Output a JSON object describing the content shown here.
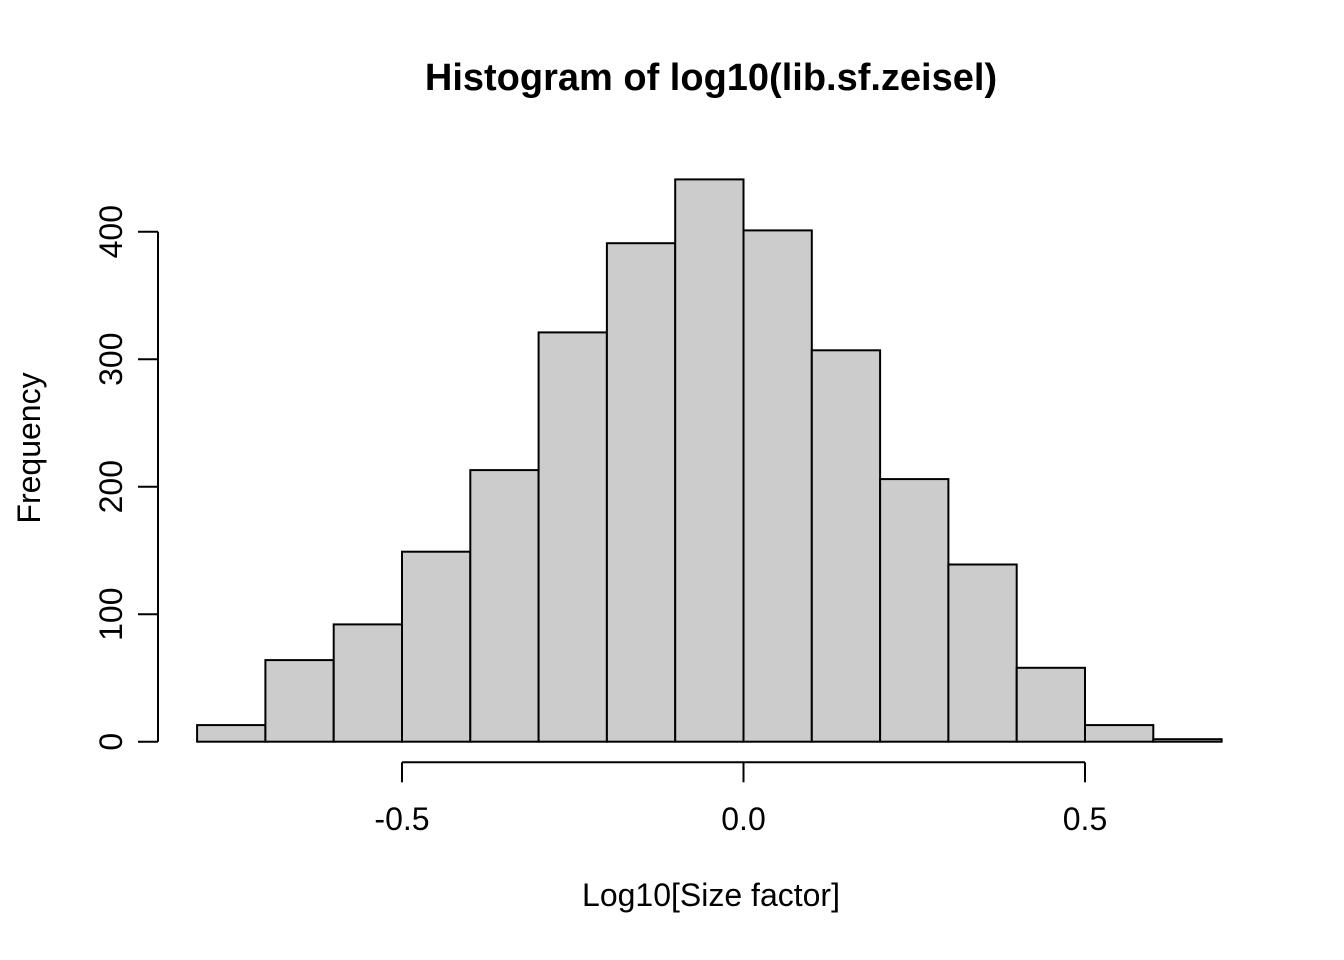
{
  "figure": {
    "background": "#ffffff"
  },
  "chart_data": {
    "type": "bar",
    "subtype": "histogram",
    "title": "Histogram of log10(lib.sf.zeisel)",
    "xlabel": "Log10[Size factor]",
    "ylabel": "Frequency",
    "bin_start": -0.8,
    "bin_width": 0.1,
    "bin_edges": [
      -0.8,
      -0.7,
      -0.6,
      -0.5,
      -0.4,
      -0.3,
      -0.2,
      -0.1,
      0.0,
      0.1,
      0.2,
      0.3,
      0.4,
      0.5,
      0.6,
      0.7
    ],
    "counts": [
      13,
      64,
      92,
      149,
      213,
      321,
      391,
      441,
      401,
      307,
      206,
      139,
      58,
      13,
      2
    ],
    "x_ticks": [
      -0.5,
      0.0,
      0.5
    ],
    "x_tick_labels": [
      "-0.5",
      "0.0",
      "0.5"
    ],
    "y_ticks": [
      0,
      100,
      200,
      300,
      400
    ],
    "y_tick_labels": [
      "0",
      "100",
      "200",
      "300",
      "400"
    ],
    "xlim": [
      -0.5,
      0.5
    ],
    "ylim": [
      0,
      400
    ],
    "grid": false,
    "legend_position": "none",
    "colors": {
      "bar_fill": "#cccccc",
      "bar_stroke": "#000000",
      "axis": "#000000",
      "text": "#000000"
    }
  }
}
